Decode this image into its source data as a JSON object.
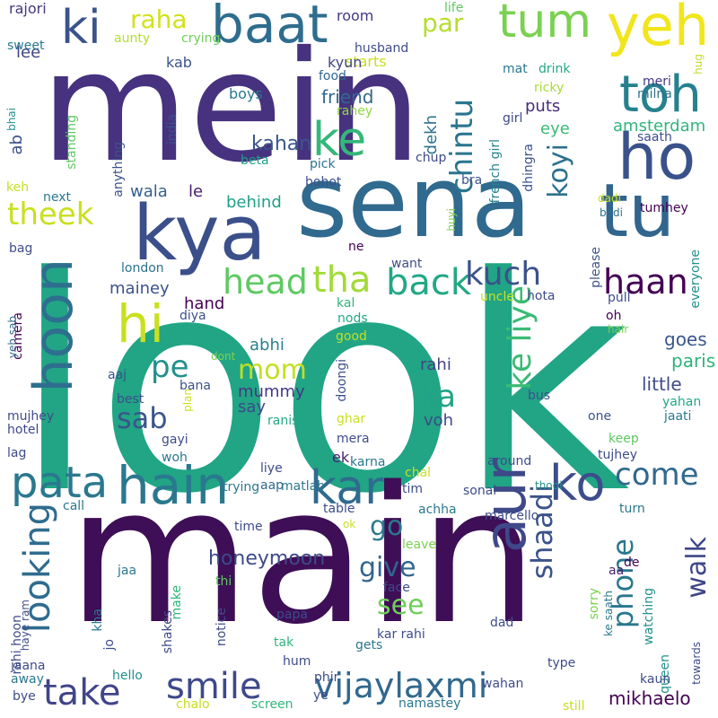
{
  "words": [
    {
      "text": "mein",
      "color": "#46327e"
    },
    {
      "text": "look",
      "color": "#21a585"
    },
    {
      "text": "main",
      "color": "#3e0e56"
    },
    {
      "text": "sena",
      "color": "#306a8e"
    },
    {
      "text": "kya",
      "color": "#3b4f8a"
    },
    {
      "text": "tu",
      "color": "#32658e"
    },
    {
      "text": "ho",
      "color": "#3a528b"
    },
    {
      "text": "yeh",
      "color": "#f1e51d"
    },
    {
      "text": "baat",
      "color": "#2f6d8e"
    },
    {
      "text": "toh",
      "color": "#26818e"
    },
    {
      "text": "tum",
      "color": "#7ad151"
    },
    {
      "text": "ki",
      "color": "#3b528b"
    },
    {
      "text": "hi",
      "color": "#c8e020"
    },
    {
      "text": "ke",
      "color": "#35b779"
    },
    {
      "text": "hain",
      "color": "#2a788e"
    },
    {
      "text": "kar",
      "color": "#306a8e"
    },
    {
      "text": "ko",
      "color": "#3d4d8a"
    },
    {
      "text": "aur",
      "color": "#3f4889"
    },
    {
      "text": "hoon",
      "color": "#2e6e8e"
    },
    {
      "text": "pata",
      "color": "#2a788e"
    },
    {
      "text": "looking",
      "color": "#2f6c8e"
    },
    {
      "text": "take",
      "color": "#404588"
    },
    {
      "text": "smile",
      "color": "#3e4989"
    },
    {
      "text": "vijaylaxmi",
      "color": "#31688e"
    },
    {
      "text": "tha",
      "color": "#a2da37"
    },
    {
      "text": "back",
      "color": "#22a884"
    },
    {
      "text": "head",
      "color": "#5ec962"
    },
    {
      "text": "haan",
      "color": "#440154"
    },
    {
      "text": "kuch",
      "color": "#3b528b"
    },
    {
      "text": "theek",
      "color": "#c8e020"
    },
    {
      "text": "chintu",
      "color": "#2b758e"
    },
    {
      "text": "come",
      "color": "#31688e"
    },
    {
      "text": "ke liye",
      "color": "#3bbb75"
    },
    {
      "text": "ka",
      "color": "#20a386"
    },
    {
      "text": "pe",
      "color": "#21918c"
    },
    {
      "text": "sab",
      "color": "#39558c"
    },
    {
      "text": "mom",
      "color": "#c2df23"
    },
    {
      "text": "koyi",
      "color": "#2d708e"
    },
    {
      "text": "par",
      "color": "#b5de2b"
    },
    {
      "text": "raha",
      "color": "#d2e21b"
    },
    {
      "text": "shaadi",
      "color": "#3b528b"
    },
    {
      "text": "phone",
      "color": "#29788e"
    },
    {
      "text": "walk",
      "color": "#3f4788"
    },
    {
      "text": "go",
      "color": "#2a788e"
    },
    {
      "text": "give",
      "color": "#32658e"
    },
    {
      "text": "see",
      "color": "#6ece58"
    },
    {
      "text": "honeymoon",
      "color": "#3e4a89"
    },
    {
      "text": "mikhaelo",
      "color": "#440154"
    },
    {
      "text": "kahan",
      "color": "#39558c"
    },
    {
      "text": "friend",
      "color": "#31688e"
    },
    {
      "text": "amsterdam",
      "color": "#31b57b"
    },
    {
      "text": "puts",
      "color": "#472d7b"
    },
    {
      "text": "eye",
      "color": "#3aba76"
    },
    {
      "text": "paris",
      "color": "#2eb37c"
    },
    {
      "text": "goes",
      "color": "#39568c"
    },
    {
      "text": "little",
      "color": "#3e4c8a"
    },
    {
      "text": "rahi",
      "color": "#414487"
    },
    {
      "text": "voh",
      "color": "#3e4989"
    },
    {
      "text": "abhi",
      "color": "#26828e"
    },
    {
      "text": "mummy",
      "color": "#453781"
    },
    {
      "text": "say",
      "color": "#3e4989"
    },
    {
      "text": "mainey",
      "color": "#3b528b"
    },
    {
      "text": "hand",
      "color": "#440154"
    },
    {
      "text": "le",
      "color": "#482173"
    },
    {
      "text": "wala",
      "color": "#355f8d"
    },
    {
      "text": "behind",
      "color": "#1fa188"
    },
    {
      "text": "kab",
      "color": "#3b528b"
    },
    {
      "text": "lee",
      "color": "#404588"
    },
    {
      "text": "ab",
      "color": "#3b528b"
    },
    {
      "text": "rajori",
      "color": "#453781"
    },
    {
      "text": "room",
      "color": "#453781"
    },
    {
      "text": "starts",
      "color": "#c8e020"
    },
    {
      "text": "crying",
      "color": "#6ece58"
    },
    {
      "text": "aunty",
      "color": "#b5de2b"
    },
    {
      "text": "sweet",
      "color": "#2a788e"
    },
    {
      "text": "kyun",
      "color": "#404588"
    },
    {
      "text": "food",
      "color": "#31688e"
    },
    {
      "text": "boys",
      "color": "#2a788e"
    },
    {
      "text": "india",
      "color": "#3b528b"
    },
    {
      "text": "rahey",
      "color": "#90d743"
    },
    {
      "text": "dekh",
      "color": "#2c728e"
    },
    {
      "text": "girl",
      "color": "#3e4a89"
    },
    {
      "text": "french girl",
      "color": "#26828e"
    },
    {
      "text": "husband",
      "color": "#3e4c8a"
    },
    {
      "text": "life",
      "color": "#5ec962"
    },
    {
      "text": "mat",
      "color": "#2a788e"
    },
    {
      "text": "drink",
      "color": "#22a884"
    },
    {
      "text": "meri",
      "color": "#453781"
    },
    {
      "text": "milna",
      "color": "#2c728e"
    },
    {
      "text": "hug",
      "color": "#bddf26"
    },
    {
      "text": "ricky",
      "color": "#a8db34"
    },
    {
      "text": "saath",
      "color": "#3e4c8a"
    },
    {
      "text": "standing",
      "color": "#5ec962"
    },
    {
      "text": "anything",
      "color": "#3b528b"
    },
    {
      "text": "beta",
      "color": "#1f9e89"
    },
    {
      "text": "pick",
      "color": "#2c728e"
    },
    {
      "text": "bohot",
      "color": "#3b528b"
    },
    {
      "text": "chup",
      "color": "#3e4989"
    },
    {
      "text": "bra",
      "color": "#3b528b"
    },
    {
      "text": "dhingra",
      "color": "#3b528b"
    },
    {
      "text": "keh",
      "color": "#c2df23"
    },
    {
      "text": "next",
      "color": "#2a788e"
    },
    {
      "text": "bhai",
      "color": "#21918c"
    },
    {
      "text": "tumhey",
      "color": "#440154"
    },
    {
      "text": "dadi",
      "color": "#c8e020"
    },
    {
      "text": "badi",
      "color": "#2c728e"
    },
    {
      "text": "bag",
      "color": "#3e4c8a"
    },
    {
      "text": "london",
      "color": "#2c728e"
    },
    {
      "text": "ne",
      "color": "#440154"
    },
    {
      "text": "want",
      "color": "#3e4c8a"
    },
    {
      "text": "huyi",
      "color": "#7ad151"
    },
    {
      "text": "everyone",
      "color": "#21918c"
    },
    {
      "text": "please",
      "color": "#3b528b"
    },
    {
      "text": "hota",
      "color": "#3e4c8a"
    },
    {
      "text": "uncle",
      "color": "#c8e020"
    },
    {
      "text": "pull",
      "color": "#3e4c8a"
    },
    {
      "text": "oh",
      "color": "#440154"
    },
    {
      "text": "hair",
      "color": "#7ad151"
    },
    {
      "text": "diya",
      "color": "#3b528b"
    },
    {
      "text": "kal",
      "color": "#31b57b"
    },
    {
      "text": "nods",
      "color": "#22a884"
    },
    {
      "text": "good",
      "color": "#c2df23"
    },
    {
      "text": "camera",
      "color": "#440154"
    },
    {
      "text": "yeh sab",
      "color": "#31688e"
    },
    {
      "text": "aaj",
      "color": "#3b528b"
    },
    {
      "text": "best",
      "color": "#3e4c8a"
    },
    {
      "text": "dont",
      "color": "#7ad151"
    },
    {
      "text": "bana",
      "color": "#3b528b"
    },
    {
      "text": "plan",
      "color": "#c8e020"
    },
    {
      "text": "doongi",
      "color": "#3b528b"
    },
    {
      "text": "ranis",
      "color": "#22a884"
    },
    {
      "text": "bus",
      "color": "#3b528b"
    },
    {
      "text": "yahan",
      "color": "#22a884"
    },
    {
      "text": "jaati",
      "color": "#2a788e"
    },
    {
      "text": "one",
      "color": "#3b528b"
    },
    {
      "text": "mujhey",
      "color": "#3e4c8a"
    },
    {
      "text": "hotel",
      "color": "#3e4989"
    },
    {
      "text": "lag",
      "color": "#3e4c8a"
    },
    {
      "text": "gayi",
      "color": "#3e4c8a"
    },
    {
      "text": "woh",
      "color": "#2a788e"
    },
    {
      "text": "ghar",
      "color": "#c8e020"
    },
    {
      "text": "mera",
      "color": "#3e4c8a"
    },
    {
      "text": "keep",
      "color": "#5ec962"
    },
    {
      "text": "tujhey",
      "color": "#3e4c8a"
    },
    {
      "text": "ek",
      "color": "#482173"
    },
    {
      "text": "karna",
      "color": "#2a788e"
    },
    {
      "text": "liye",
      "color": "#3e4c8a"
    },
    {
      "text": "aap",
      "color": "#31688e"
    },
    {
      "text": "matlab",
      "color": "#2a788e"
    },
    {
      "text": "chal",
      "color": "#c8e020"
    },
    {
      "text": "tim",
      "color": "#3e4c8a"
    },
    {
      "text": "sonal",
      "color": "#3e4c8a"
    },
    {
      "text": "around",
      "color": "#3e4c8a"
    },
    {
      "text": "thodi",
      "color": "#21918c"
    },
    {
      "text": "call",
      "color": "#2a788e"
    },
    {
      "text": "trying",
      "color": "#2a788e"
    },
    {
      "text": "time",
      "color": "#3e4c8a"
    },
    {
      "text": "table",
      "color": "#3e4c8a"
    },
    {
      "text": "ok",
      "color": "#c8e020"
    },
    {
      "text": "achha",
      "color": "#2a788e"
    },
    {
      "text": "marcello",
      "color": "#3e4c8a"
    },
    {
      "text": "turn",
      "color": "#2a788e"
    },
    {
      "text": "leave",
      "color": "#7ad151"
    },
    {
      "text": "de",
      "color": "#440154"
    },
    {
      "text": "aa",
      "color": "#482173"
    },
    {
      "text": "rahi hoon",
      "color": "#3e4c8a"
    },
    {
      "text": "haye ram",
      "color": "#3e4c8a"
    },
    {
      "text": "jaa",
      "color": "#2a788e"
    },
    {
      "text": "make",
      "color": "#31b57b"
    },
    {
      "text": "thi",
      "color": "#5ec962"
    },
    {
      "text": "face",
      "color": "#3e4c8a"
    },
    {
      "text": "sorry",
      "color": "#7ad151"
    },
    {
      "text": "ke saath",
      "color": "#2a788e"
    },
    {
      "text": "watching",
      "color": "#21918c"
    },
    {
      "text": "towards",
      "color": "#3e4c8a"
    },
    {
      "text": "kha",
      "color": "#2a788e"
    },
    {
      "text": "jo",
      "color": "#3e4c8a"
    },
    {
      "text": "notice",
      "color": "#3e4c8a"
    },
    {
      "text": "shakes",
      "color": "#3e4c8a"
    },
    {
      "text": "papa",
      "color": "#3e4c8a"
    },
    {
      "text": "dad",
      "color": "#3e4c8a"
    },
    {
      "text": "kar rahi",
      "color": "#3e4c8a"
    },
    {
      "text": "gets",
      "color": "#2a788e"
    },
    {
      "text": "type",
      "color": "#3e4c8a"
    },
    {
      "text": "queen",
      "color": "#21918c"
    },
    {
      "text": "wahan",
      "color": "#3e4c8a"
    },
    {
      "text": "kaun",
      "color": "#3e4c8a"
    },
    {
      "text": "jaana",
      "color": "#3e4c8a"
    },
    {
      "text": "tak",
      "color": "#31b57b"
    },
    {
      "text": "hum",
      "color": "#3e4c8a"
    },
    {
      "text": "phir",
      "color": "#3e4c8a"
    },
    {
      "text": "ye",
      "color": "#3e4c8a"
    },
    {
      "text": "away",
      "color": "#2a788e"
    },
    {
      "text": "hello",
      "color": "#21918c"
    },
    {
      "text": "bye",
      "color": "#3e4c8a"
    },
    {
      "text": "chalo",
      "color": "#c8e020"
    },
    {
      "text": "screen",
      "color": "#31b57b"
    },
    {
      "text": "namastey",
      "color": "#2a788e"
    },
    {
      "text": "still",
      "color": "#c8e020"
    }
  ]
}
